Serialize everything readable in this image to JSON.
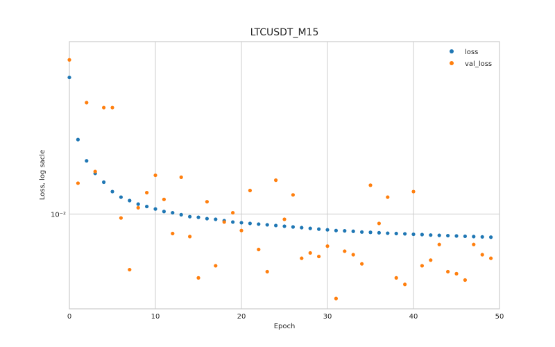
{
  "chart_data": {
    "type": "scatter",
    "title": "LTCUSDT_M15",
    "xlabel": "Epoch",
    "ylabel": "Loss, log sacle",
    "xlim": [
      0,
      50
    ],
    "yscale": "log",
    "ylim": [
      0.0048,
      0.038
    ],
    "xticks": [
      0,
      10,
      20,
      30,
      40,
      50
    ],
    "xtick_labels": [
      "0",
      "10",
      "20",
      "30",
      "40",
      "50"
    ],
    "yticks": [
      0.01
    ],
    "ytick_labels": [
      "10⁻²"
    ],
    "grid": true,
    "legend_position": "top-right",
    "series": [
      {
        "name": "loss",
        "color": "#1f77b4",
        "x": [
          0,
          1,
          2,
          3,
          4,
          5,
          6,
          7,
          8,
          9,
          10,
          11,
          12,
          13,
          14,
          15,
          16,
          17,
          18,
          19,
          20,
          21,
          22,
          23,
          24,
          25,
          26,
          27,
          28,
          29,
          30,
          31,
          32,
          33,
          34,
          35,
          36,
          37,
          38,
          39,
          40,
          41,
          42,
          43,
          44,
          45,
          46,
          47,
          48,
          49
        ],
        "y": [
          0.0288,
          0.0178,
          0.0151,
          0.0137,
          0.0128,
          0.0119,
          0.0114,
          0.0111,
          0.0108,
          0.0106,
          0.0104,
          0.0102,
          0.0101,
          0.00995,
          0.0098,
          0.00975,
          0.00965,
          0.0096,
          0.0095,
          0.0094,
          0.00935,
          0.0093,
          0.00925,
          0.0092,
          0.00915,
          0.0091,
          0.00905,
          0.009,
          0.00895,
          0.0089,
          0.00885,
          0.0088,
          0.00878,
          0.00875,
          0.0087,
          0.00868,
          0.00865,
          0.00862,
          0.0086,
          0.00858,
          0.00855,
          0.00853,
          0.0085,
          0.00848,
          0.00846,
          0.00844,
          0.00842,
          0.0084,
          0.00838,
          0.00836
        ]
      },
      {
        "name": "val_loss",
        "color": "#ff7f0e",
        "x": [
          0,
          1,
          2,
          3,
          4,
          5,
          6,
          7,
          8,
          9,
          10,
          11,
          12,
          13,
          14,
          15,
          16,
          17,
          18,
          19,
          20,
          21,
          22,
          23,
          24,
          25,
          26,
          27,
          28,
          29,
          30,
          31,
          32,
          33,
          34,
          35,
          36,
          37,
          38,
          39,
          40,
          41,
          42,
          43,
          44,
          45,
          46,
          47,
          48,
          49
        ],
        "y": [
          0.033,
          0.0127,
          0.0237,
          0.0139,
          0.0228,
          0.0228,
          0.0097,
          0.0065,
          0.0105,
          0.0118,
          0.0135,
          0.0112,
          0.0086,
          0.0133,
          0.0084,
          0.0061,
          0.011,
          0.0067,
          0.0094,
          0.0101,
          0.0088,
          0.012,
          0.0076,
          0.0064,
          0.013,
          0.0096,
          0.0116,
          0.0071,
          0.0074,
          0.0072,
          0.0078,
          0.0052,
          0.0075,
          0.0073,
          0.0068,
          0.0125,
          0.0093,
          0.0114,
          0.0061,
          0.0058,
          0.0119,
          0.0067,
          0.007,
          0.0079,
          0.0064,
          0.0063,
          0.006,
          0.0079,
          0.0073,
          0.0071
        ]
      }
    ]
  }
}
